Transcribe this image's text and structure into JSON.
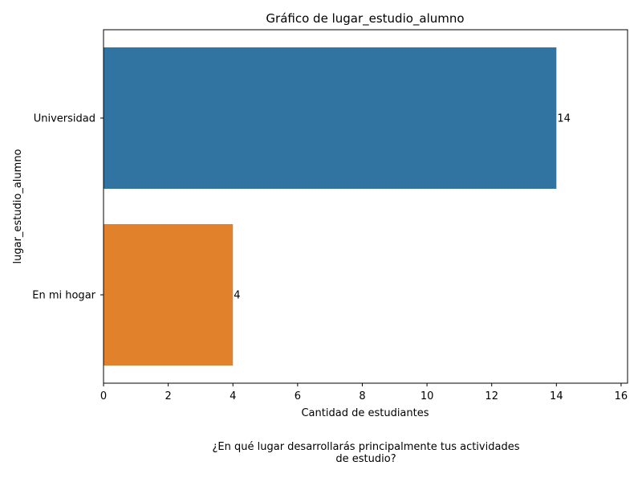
{
  "chart_data": {
    "type": "bar",
    "orientation": "horizontal",
    "title": "Gráfico de lugar_estudio_alumno",
    "xlabel": "Cantidad de estudiantes",
    "ylabel": "lugar_estudio_alumno",
    "categories": [
      "Universidad",
      "En mi hogar"
    ],
    "values": [
      14,
      4
    ],
    "value_labels": [
      "14",
      "4"
    ],
    "colors": [
      "#3274a1",
      "#e1812c"
    ],
    "xlim": [
      0,
      16.2
    ],
    "xticks": [
      0,
      2,
      4,
      6,
      8,
      10,
      12,
      14,
      16
    ],
    "xtick_labels": [
      "0",
      "2",
      "4",
      "6",
      "8",
      "10",
      "12",
      "14",
      "16"
    ],
    "grid": false,
    "legend": "none"
  },
  "caption": {
    "line1": "¿En qué lugar desarrollarás principalmente tus actividades",
    "line2": "de estudio?"
  }
}
